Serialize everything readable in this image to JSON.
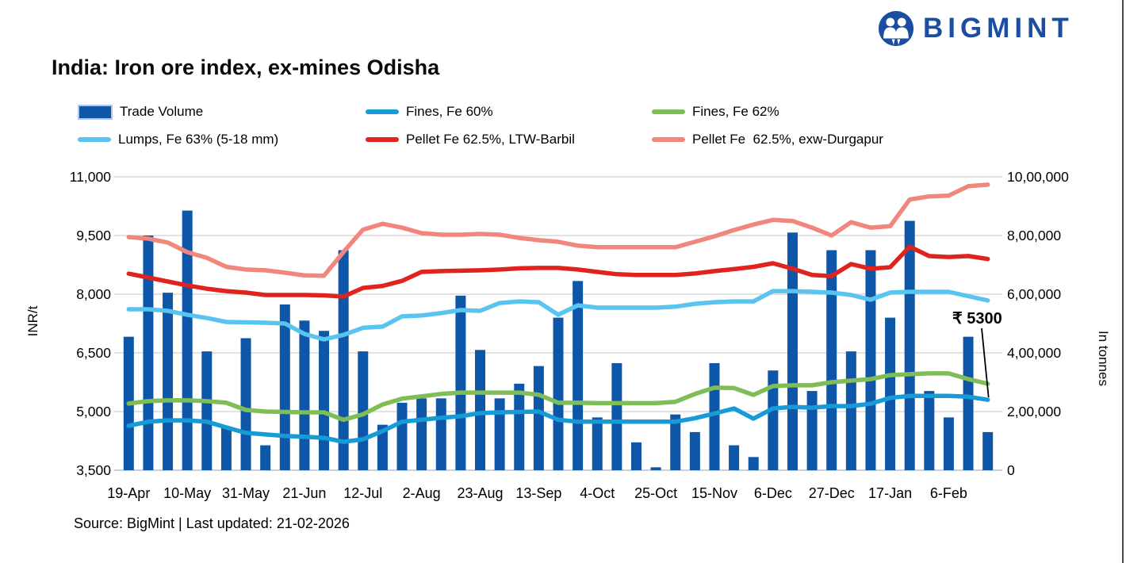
{
  "brand": {
    "name": "BIGMINT",
    "color": "#1B4DA1"
  },
  "header": {
    "title": "India: Iron ore index, ex-mines Odisha"
  },
  "footer": {
    "source_line": "Source: BigMint | Last updated: 21-02-2026"
  },
  "annotation": {
    "text": "₹ 5300",
    "value": 5300,
    "series": "Fines, Fe 60%"
  },
  "chart_data": {
    "type": "combo (bar + line)",
    "title": "India: Iron ore index, ex-mines Odisha",
    "x_labels": [
      "19-Apr",
      "10-May",
      "31-May",
      "21-Jun",
      "12-Jul",
      "2-Aug",
      "23-Aug",
      "13-Sep",
      "4-Oct",
      "25-Oct",
      "15-Nov",
      "6-Dec",
      "27-Dec",
      "17-Jan",
      "6-Feb"
    ],
    "label_every": 3,
    "n_points": 45,
    "grid": "horizontal only",
    "left_axis": {
      "title": "INR/t",
      "min": 3500,
      "max": 11000,
      "tick_values": [
        11000,
        9500,
        8000,
        6500,
        5000,
        3500
      ],
      "tick_labels": [
        "11,000",
        "9,500",
        "8,000",
        "6,500",
        "5,000",
        "3,500"
      ]
    },
    "right_axis": {
      "title": "In tonnes",
      "min": 0,
      "max": 1000000,
      "tick_values": [
        1000000,
        800000,
        600000,
        400000,
        200000,
        0
      ],
      "tick_labels": [
        "10,00,000",
        "8,00,000",
        "6,00,000",
        "4,00,000",
        "2,00,000",
        "0"
      ]
    },
    "bars": {
      "name": "Trade Volume",
      "color": "#0E57A8",
      "axis": "right",
      "values": [
        455000,
        800000,
        605000,
        885000,
        405000,
        145000,
        450000,
        85000,
        565000,
        510000,
        475000,
        750000,
        405000,
        155000,
        230000,
        245000,
        245000,
        595000,
        410000,
        245000,
        295000,
        355000,
        520000,
        645000,
        180000,
        365000,
        95000,
        10000,
        190000,
        130000,
        365000,
        85000,
        45000,
        340000,
        810000,
        270000,
        750000,
        405000,
        750000,
        520000,
        850000,
        270000,
        180000,
        455000,
        130000
      ]
    },
    "lines": [
      {
        "name": "Pellet Fe  62.5%, exw-Durgapur",
        "color": "#F1867D",
        "axis": "left",
        "values": [
          9460,
          9420,
          9320,
          9075,
          8930,
          8700,
          8630,
          8610,
          8550,
          8480,
          8470,
          9080,
          9650,
          9800,
          9700,
          9560,
          9520,
          9520,
          9540,
          9520,
          9440,
          9380,
          9340,
          9240,
          9200,
          9200,
          9200,
          9200,
          9200,
          9340,
          9480,
          9640,
          9780,
          9900,
          9870,
          9700,
          9500,
          9840,
          9700,
          9740,
          10420,
          10500,
          10520,
          10760,
          10800
        ]
      },
      {
        "name": "Pellet Fe 62.5%, LTW-Barbil",
        "color": "#E0231E",
        "axis": "left",
        "values": [
          8525,
          8425,
          8325,
          8225,
          8140,
          8080,
          8040,
          7980,
          7980,
          7980,
          7970,
          7940,
          8160,
          8210,
          8340,
          8570,
          8590,
          8600,
          8610,
          8630,
          8660,
          8670,
          8670,
          8630,
          8570,
          8510,
          8490,
          8490,
          8490,
          8530,
          8590,
          8640,
          8700,
          8790,
          8650,
          8490,
          8465,
          8770,
          8650,
          8690,
          9215,
          8975,
          8950,
          8975,
          8900
        ]
      },
      {
        "name": "Lumps, Fe 63% (5-18 mm)",
        "color": "#5AC4F1",
        "axis": "left",
        "values": [
          7615,
          7615,
          7575,
          7475,
          7390,
          7290,
          7280,
          7270,
          7250,
          6985,
          6845,
          6960,
          7140,
          7170,
          7435,
          7455,
          7515,
          7595,
          7575,
          7775,
          7815,
          7795,
          7475,
          7715,
          7655,
          7655,
          7655,
          7655,
          7680,
          7755,
          7795,
          7815,
          7815,
          8080,
          8080,
          8060,
          8040,
          7980,
          7860,
          8040,
          8060,
          8060,
          8060,
          7950,
          7840
        ]
      },
      {
        "name": "Fines, Fe 62%",
        "color": "#7FBD56",
        "axis": "left",
        "values": [
          5205,
          5265,
          5285,
          5285,
          5265,
          5225,
          5040,
          5000,
          4990,
          4980,
          4980,
          4790,
          4930,
          5180,
          5330,
          5390,
          5450,
          5485,
          5485,
          5485,
          5485,
          5430,
          5225,
          5225,
          5215,
          5215,
          5215,
          5215,
          5250,
          5450,
          5610,
          5600,
          5425,
          5650,
          5670,
          5670,
          5750,
          5790,
          5830,
          5930,
          5955,
          5975,
          5975,
          5830,
          5710
        ]
      },
      {
        "name": "Fines, Fe 60%",
        "color": "#169BD7",
        "axis": "left",
        "values": [
          4635,
          4740,
          4775,
          4775,
          4740,
          4595,
          4455,
          4415,
          4375,
          4355,
          4330,
          4225,
          4290,
          4500,
          4740,
          4790,
          4840,
          4880,
          4960,
          4980,
          4990,
          5000,
          4790,
          4740,
          4740,
          4740,
          4740,
          4740,
          4740,
          4830,
          4950,
          5080,
          4820,
          5080,
          5120,
          5100,
          5140,
          5140,
          5200,
          5350,
          5400,
          5400,
          5400,
          5380,
          5300
        ]
      }
    ],
    "legend_rows": [
      [
        "Trade Volume",
        "Fines, Fe 60%",
        "Fines, Fe 62%"
      ],
      [
        "Lumps, Fe 63% (5-18 mm)",
        "Pellet Fe 62.5%, LTW-Barbil",
        "Pellet Fe  62.5%, exw-Durgapur"
      ]
    ],
    "annotation": {
      "text": "₹ 5300",
      "value": 5300,
      "series": "Fines, Fe 60%",
      "point_index": 44
    },
    "legend_position": "top",
    "colors": {
      "gridline": "#D9D9D9",
      "axis_line": "#BFBFBF"
    }
  }
}
